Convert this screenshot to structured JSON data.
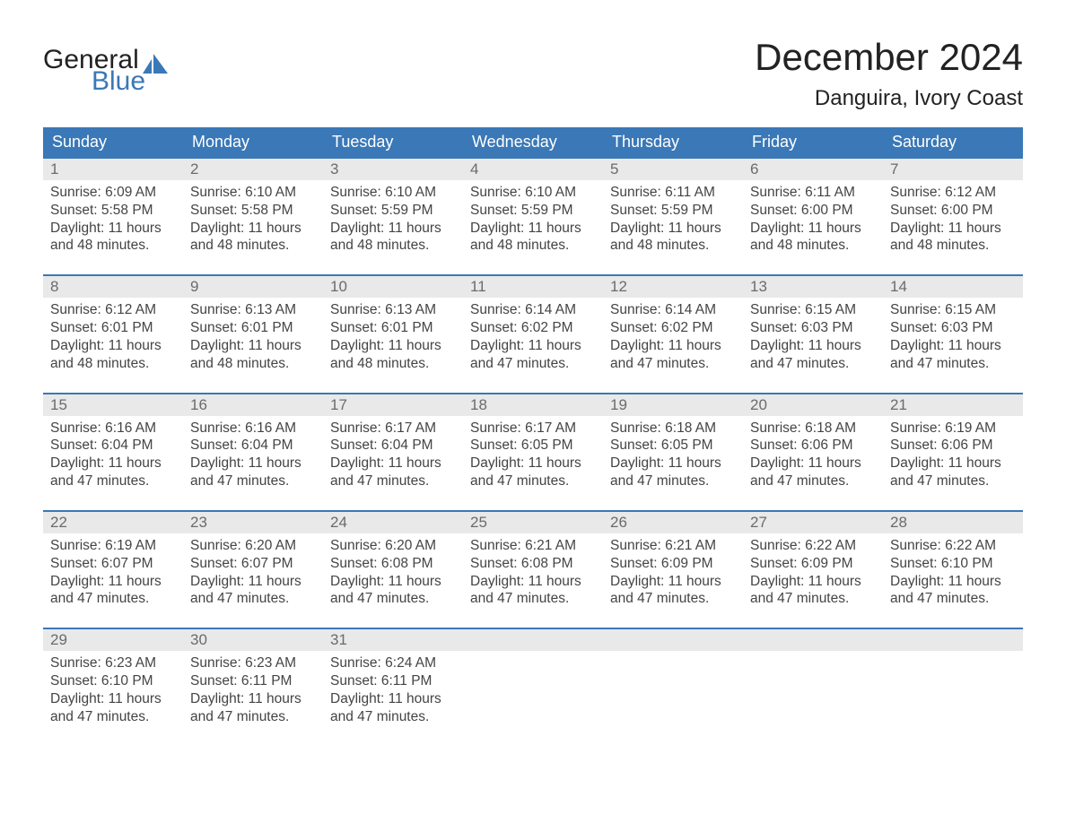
{
  "brand": {
    "word1": "General",
    "word2": "Blue",
    "color_text": "#222222",
    "color_blue": "#3a78b7"
  },
  "title": "December 2024",
  "location": "Danguira, Ivory Coast",
  "colors": {
    "header_bg": "#3a78b7",
    "header_text": "#ffffff",
    "daynum_bg": "#e9e9e9",
    "daynum_text": "#6b6b6b",
    "divider": "#3a78b7",
    "body_text": "#444444",
    "page_bg": "#ffffff"
  },
  "typography": {
    "title_fontsize": 42,
    "location_fontsize": 24,
    "weekday_fontsize": 18,
    "daynum_fontsize": 17,
    "body_fontsize": 15.5,
    "font_family": "Arial"
  },
  "weekdays": [
    "Sunday",
    "Monday",
    "Tuesday",
    "Wednesday",
    "Thursday",
    "Friday",
    "Saturday"
  ],
  "weeks": [
    [
      {
        "n": "1",
        "sunrise": "Sunrise: 6:09 AM",
        "sunset": "Sunset: 5:58 PM",
        "d1": "Daylight: 11 hours",
        "d2": "and 48 minutes."
      },
      {
        "n": "2",
        "sunrise": "Sunrise: 6:10 AM",
        "sunset": "Sunset: 5:58 PM",
        "d1": "Daylight: 11 hours",
        "d2": "and 48 minutes."
      },
      {
        "n": "3",
        "sunrise": "Sunrise: 6:10 AM",
        "sunset": "Sunset: 5:59 PM",
        "d1": "Daylight: 11 hours",
        "d2": "and 48 minutes."
      },
      {
        "n": "4",
        "sunrise": "Sunrise: 6:10 AM",
        "sunset": "Sunset: 5:59 PM",
        "d1": "Daylight: 11 hours",
        "d2": "and 48 minutes."
      },
      {
        "n": "5",
        "sunrise": "Sunrise: 6:11 AM",
        "sunset": "Sunset: 5:59 PM",
        "d1": "Daylight: 11 hours",
        "d2": "and 48 minutes."
      },
      {
        "n": "6",
        "sunrise": "Sunrise: 6:11 AM",
        "sunset": "Sunset: 6:00 PM",
        "d1": "Daylight: 11 hours",
        "d2": "and 48 minutes."
      },
      {
        "n": "7",
        "sunrise": "Sunrise: 6:12 AM",
        "sunset": "Sunset: 6:00 PM",
        "d1": "Daylight: 11 hours",
        "d2": "and 48 minutes."
      }
    ],
    [
      {
        "n": "8",
        "sunrise": "Sunrise: 6:12 AM",
        "sunset": "Sunset: 6:01 PM",
        "d1": "Daylight: 11 hours",
        "d2": "and 48 minutes."
      },
      {
        "n": "9",
        "sunrise": "Sunrise: 6:13 AM",
        "sunset": "Sunset: 6:01 PM",
        "d1": "Daylight: 11 hours",
        "d2": "and 48 minutes."
      },
      {
        "n": "10",
        "sunrise": "Sunrise: 6:13 AM",
        "sunset": "Sunset: 6:01 PM",
        "d1": "Daylight: 11 hours",
        "d2": "and 48 minutes."
      },
      {
        "n": "11",
        "sunrise": "Sunrise: 6:14 AM",
        "sunset": "Sunset: 6:02 PM",
        "d1": "Daylight: 11 hours",
        "d2": "and 47 minutes."
      },
      {
        "n": "12",
        "sunrise": "Sunrise: 6:14 AM",
        "sunset": "Sunset: 6:02 PM",
        "d1": "Daylight: 11 hours",
        "d2": "and 47 minutes."
      },
      {
        "n": "13",
        "sunrise": "Sunrise: 6:15 AM",
        "sunset": "Sunset: 6:03 PM",
        "d1": "Daylight: 11 hours",
        "d2": "and 47 minutes."
      },
      {
        "n": "14",
        "sunrise": "Sunrise: 6:15 AM",
        "sunset": "Sunset: 6:03 PM",
        "d1": "Daylight: 11 hours",
        "d2": "and 47 minutes."
      }
    ],
    [
      {
        "n": "15",
        "sunrise": "Sunrise: 6:16 AM",
        "sunset": "Sunset: 6:04 PM",
        "d1": "Daylight: 11 hours",
        "d2": "and 47 minutes."
      },
      {
        "n": "16",
        "sunrise": "Sunrise: 6:16 AM",
        "sunset": "Sunset: 6:04 PM",
        "d1": "Daylight: 11 hours",
        "d2": "and 47 minutes."
      },
      {
        "n": "17",
        "sunrise": "Sunrise: 6:17 AM",
        "sunset": "Sunset: 6:04 PM",
        "d1": "Daylight: 11 hours",
        "d2": "and 47 minutes."
      },
      {
        "n": "18",
        "sunrise": "Sunrise: 6:17 AM",
        "sunset": "Sunset: 6:05 PM",
        "d1": "Daylight: 11 hours",
        "d2": "and 47 minutes."
      },
      {
        "n": "19",
        "sunrise": "Sunrise: 6:18 AM",
        "sunset": "Sunset: 6:05 PM",
        "d1": "Daylight: 11 hours",
        "d2": "and 47 minutes."
      },
      {
        "n": "20",
        "sunrise": "Sunrise: 6:18 AM",
        "sunset": "Sunset: 6:06 PM",
        "d1": "Daylight: 11 hours",
        "d2": "and 47 minutes."
      },
      {
        "n": "21",
        "sunrise": "Sunrise: 6:19 AM",
        "sunset": "Sunset: 6:06 PM",
        "d1": "Daylight: 11 hours",
        "d2": "and 47 minutes."
      }
    ],
    [
      {
        "n": "22",
        "sunrise": "Sunrise: 6:19 AM",
        "sunset": "Sunset: 6:07 PM",
        "d1": "Daylight: 11 hours",
        "d2": "and 47 minutes."
      },
      {
        "n": "23",
        "sunrise": "Sunrise: 6:20 AM",
        "sunset": "Sunset: 6:07 PM",
        "d1": "Daylight: 11 hours",
        "d2": "and 47 minutes."
      },
      {
        "n": "24",
        "sunrise": "Sunrise: 6:20 AM",
        "sunset": "Sunset: 6:08 PM",
        "d1": "Daylight: 11 hours",
        "d2": "and 47 minutes."
      },
      {
        "n": "25",
        "sunrise": "Sunrise: 6:21 AM",
        "sunset": "Sunset: 6:08 PM",
        "d1": "Daylight: 11 hours",
        "d2": "and 47 minutes."
      },
      {
        "n": "26",
        "sunrise": "Sunrise: 6:21 AM",
        "sunset": "Sunset: 6:09 PM",
        "d1": "Daylight: 11 hours",
        "d2": "and 47 minutes."
      },
      {
        "n": "27",
        "sunrise": "Sunrise: 6:22 AM",
        "sunset": "Sunset: 6:09 PM",
        "d1": "Daylight: 11 hours",
        "d2": "and 47 minutes."
      },
      {
        "n": "28",
        "sunrise": "Sunrise: 6:22 AM",
        "sunset": "Sunset: 6:10 PM",
        "d1": "Daylight: 11 hours",
        "d2": "and 47 minutes."
      }
    ],
    [
      {
        "n": "29",
        "sunrise": "Sunrise: 6:23 AM",
        "sunset": "Sunset: 6:10 PM",
        "d1": "Daylight: 11 hours",
        "d2": "and 47 minutes."
      },
      {
        "n": "30",
        "sunrise": "Sunrise: 6:23 AM",
        "sunset": "Sunset: 6:11 PM",
        "d1": "Daylight: 11 hours",
        "d2": "and 47 minutes."
      },
      {
        "n": "31",
        "sunrise": "Sunrise: 6:24 AM",
        "sunset": "Sunset: 6:11 PM",
        "d1": "Daylight: 11 hours",
        "d2": "and 47 minutes."
      },
      null,
      null,
      null,
      null
    ]
  ]
}
